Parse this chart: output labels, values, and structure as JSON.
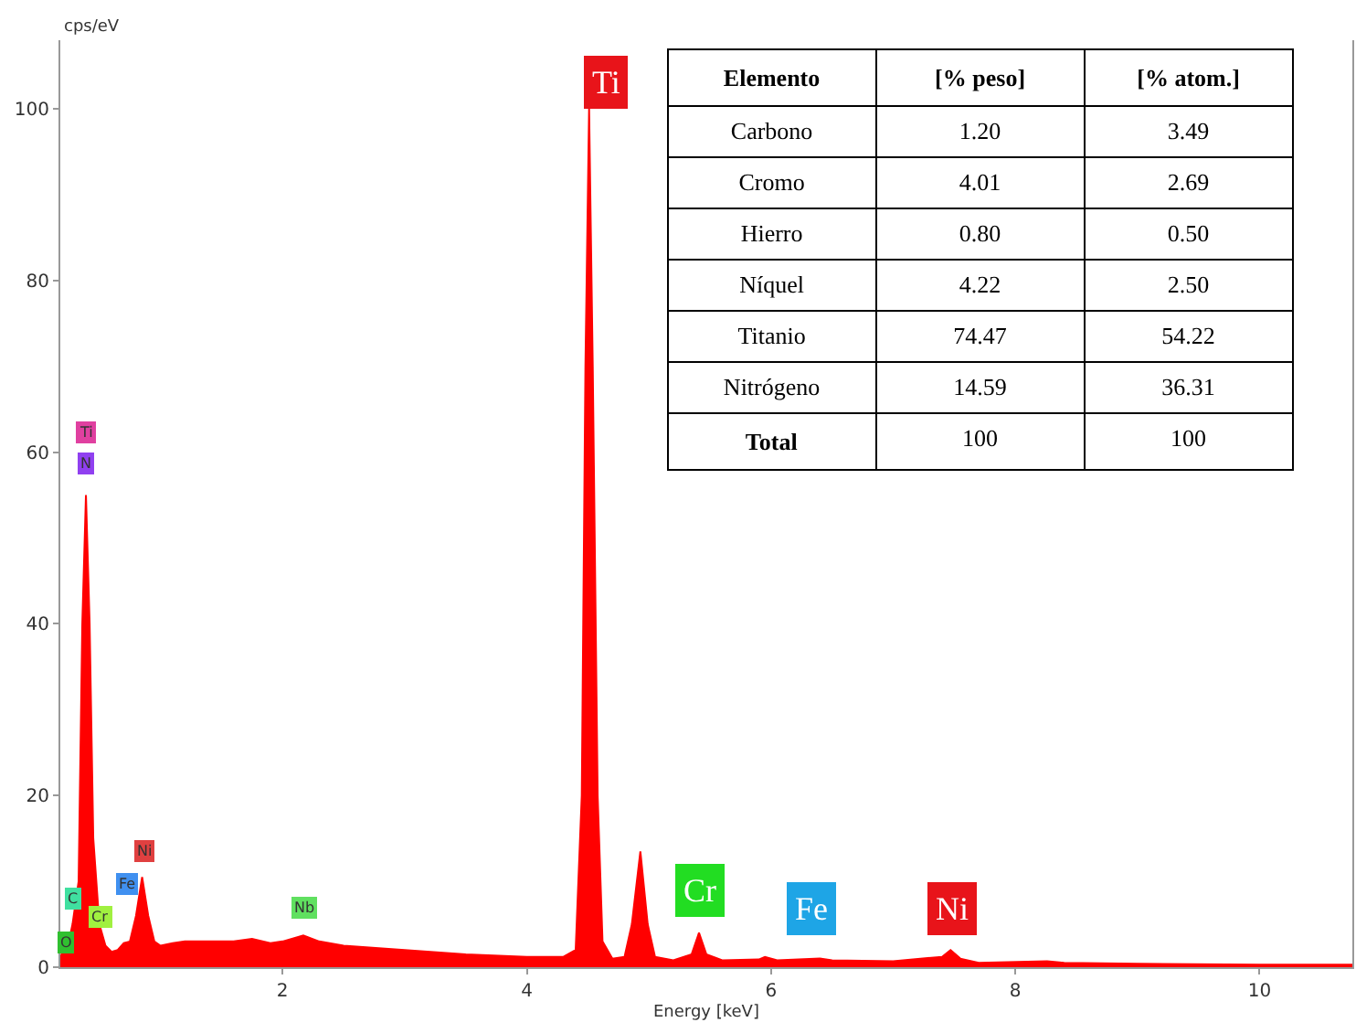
{
  "chart_data": {
    "type": "area",
    "xlabel": "Energy [keV]",
    "ylabel": "cps/eV",
    "x": [
      0.18,
      0.2,
      0.25,
      0.28,
      0.33,
      0.36,
      0.39,
      0.42,
      0.45,
      0.5,
      0.55,
      0.6,
      0.65,
      0.7,
      0.75,
      0.8,
      0.85,
      0.9,
      0.95,
      1.0,
      1.1,
      1.2,
      1.4,
      1.6,
      1.75,
      1.9,
      2.0,
      2.17,
      2.3,
      2.5,
      3.0,
      3.5,
      4.0,
      4.3,
      4.4,
      4.45,
      4.48,
      4.51,
      4.54,
      4.58,
      4.62,
      4.7,
      4.8,
      4.86,
      4.93,
      4.99,
      5.05,
      5.2,
      5.35,
      5.41,
      5.47,
      5.6,
      5.9,
      5.95,
      6.05,
      6.4,
      6.5,
      7.0,
      7.4,
      7.47,
      7.55,
      7.7,
      8.26,
      8.4,
      9.0,
      10.0,
      10.76
    ],
    "series": [
      {
        "color": "#ff0000",
        "values": [
          1,
          2,
          3,
          5,
          10,
          40,
          55,
          40,
          15,
          5,
          2.5,
          1.8,
          2,
          2.8,
          3,
          6,
          10.5,
          6,
          3,
          2.5,
          2.8,
          3,
          3,
          3,
          3.3,
          2.8,
          3,
          3.7,
          3,
          2.5,
          2,
          1.5,
          1.2,
          1.2,
          2,
          20,
          70,
          100,
          70,
          20,
          3,
          1,
          1.2,
          5,
          13.5,
          5,
          1.2,
          0.8,
          1.5,
          4,
          1.5,
          0.8,
          0.9,
          1.2,
          0.8,
          1,
          0.8,
          0.7,
          1.2,
          2,
          1,
          0.5,
          0.7,
          0.5,
          0.4,
          0.3,
          0.3
        ]
      }
    ],
    "xlim": [
      0.18,
      10.76
    ],
    "xticks": [
      2,
      4,
      6,
      8,
      10
    ],
    "ylim": [
      0,
      108
    ],
    "yticks": [
      0,
      20,
      40,
      60,
      80,
      100
    ],
    "legend": false,
    "annotations": [
      {
        "text": "Ti",
        "x": 4.64,
        "y": 103
      },
      {
        "text": "Cr",
        "x": 5.42,
        "y": 9
      },
      {
        "text": "Fe",
        "x": 6.33,
        "y": 6.8
      },
      {
        "text": "Ni",
        "x": 7.49,
        "y": 6.8
      },
      {
        "text": "Ti",
        "x": 0.39,
        "y": 62.4
      },
      {
        "text": "N",
        "x": 0.39,
        "y": 58.6
      },
      {
        "text": "C",
        "x": 0.28,
        "y": 7.9
      },
      {
        "text": "O",
        "x": 0.22,
        "y": 2.8
      },
      {
        "text": "Cr",
        "x": 0.51,
        "y": 5.9
      },
      {
        "text": "Fe",
        "x": 0.72,
        "y": 9.6
      },
      {
        "text": "Ni",
        "x": 0.87,
        "y": 13.6
      },
      {
        "text": "Nb",
        "x": 2.18,
        "y": 7
      },
      "Elemento",
      "[% peso]",
      "[% atom.]",
      "Carbono",
      "1.20",
      "3.49",
      "Cromo",
      "4.01",
      "2.69",
      "Hierro",
      "0.80",
      "0.50",
      "Níquel",
      "4.22",
      "2.50",
      "Titanio",
      "74.47",
      "54.22",
      "Nitrógeno",
      "14.59",
      "36.31",
      "Total",
      "100",
      "100"
    ]
  }
}
